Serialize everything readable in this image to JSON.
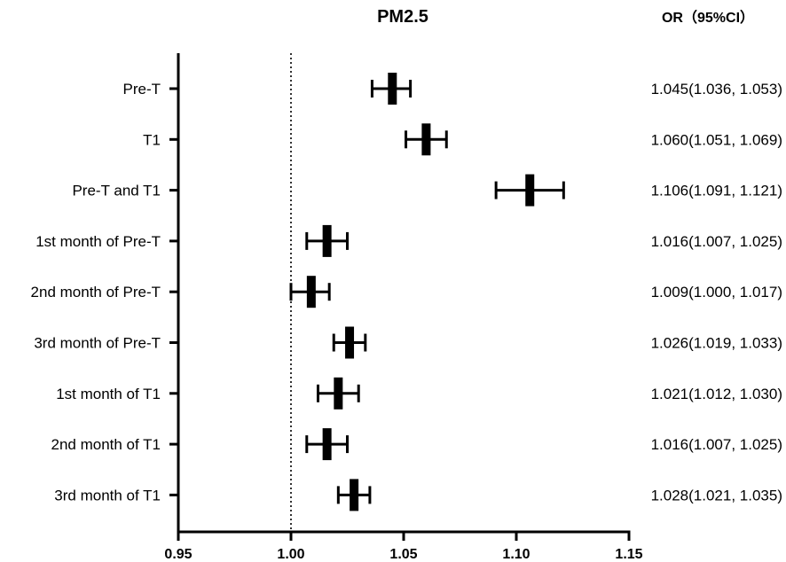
{
  "chart_data": {
    "type": "forest",
    "title": "PM2.5",
    "or_header": "OR（95%CI）",
    "xlim": [
      0.95,
      1.15
    ],
    "x_ticks": [
      "0.95",
      "1.00",
      "1.05",
      "1.10",
      "1.15"
    ],
    "reference_line": 1.0,
    "rows": [
      {
        "label": "Pre-T",
        "or": 1.045,
        "lower": 1.036,
        "upper": 1.053,
        "text": "1.045(1.036, 1.053)"
      },
      {
        "label": "T1",
        "or": 1.06,
        "lower": 1.051,
        "upper": 1.069,
        "text": "1.060(1.051, 1.069)"
      },
      {
        "label": "Pre-T and T1",
        "or": 1.106,
        "lower": 1.091,
        "upper": 1.121,
        "text": "1.106(1.091, 1.121)"
      },
      {
        "label": "1st month of Pre-T",
        "or": 1.016,
        "lower": 1.007,
        "upper": 1.025,
        "text": "1.016(1.007, 1.025)"
      },
      {
        "label": "2nd month of Pre-T",
        "or": 1.009,
        "lower": 1.0,
        "upper": 1.017,
        "text": "1.009(1.000, 1.017)"
      },
      {
        "label": "3rd month of Pre-T",
        "or": 1.026,
        "lower": 1.019,
        "upper": 1.033,
        "text": "1.026(1.019, 1.033)"
      },
      {
        "label": "1st month of T1",
        "or": 1.021,
        "lower": 1.012,
        "upper": 1.03,
        "text": "1.021(1.012, 1.030)"
      },
      {
        "label": "2nd month of T1",
        "or": 1.016,
        "lower": 1.007,
        "upper": 1.025,
        "text": "1.016(1.007, 1.025)"
      },
      {
        "label": "3rd month of T1",
        "or": 1.028,
        "lower": 1.021,
        "upper": 1.035,
        "text": "1.028(1.021, 1.035)"
      }
    ]
  }
}
